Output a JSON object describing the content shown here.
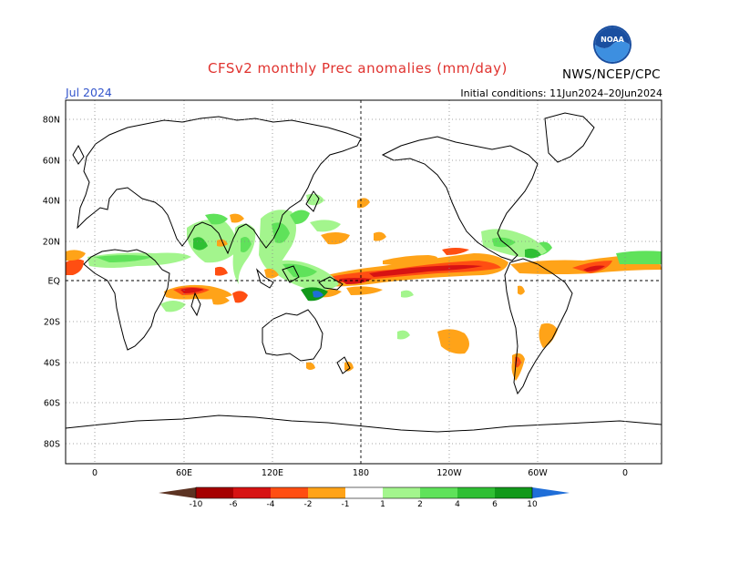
{
  "header": {
    "title": "CFSv2 monthly Prec anomalies (mm/day)",
    "month": "Jul 2024",
    "initial_conditions": "Initial conditions: 11Jun2024–20Jun2024",
    "agency": "NWS/NCEP/CPC",
    "logo_text": "NOAA"
  },
  "map": {
    "lat_labels": [
      "80N",
      "60N",
      "40N",
      "20N",
      "EQ",
      "20S",
      "40S",
      "60S",
      "80S"
    ],
    "lon_labels": [
      "0",
      "60E",
      "120E",
      "180",
      "120W",
      "60W",
      "0"
    ],
    "grid": "dotted",
    "dateline": "dashed"
  },
  "legend": {
    "labels": [
      "-10",
      "-6",
      "-4",
      "-2",
      "-1",
      "1",
      "2",
      "4",
      "6",
      "10"
    ],
    "colors": {
      "below_-10": "#5c3322",
      "-10_-6": "#a50000",
      "-6_-4": "#d71313",
      "-4_-2": "#ff4e12",
      "-2_-1": "#ffa318",
      "-1_1": "#ffffff",
      "1_2": "#a3f58d",
      "2_4": "#5fe25a",
      "4_6": "#2fbf33",
      "6_10": "#11991a",
      "above_10": "#1f6ed8"
    }
  }
}
